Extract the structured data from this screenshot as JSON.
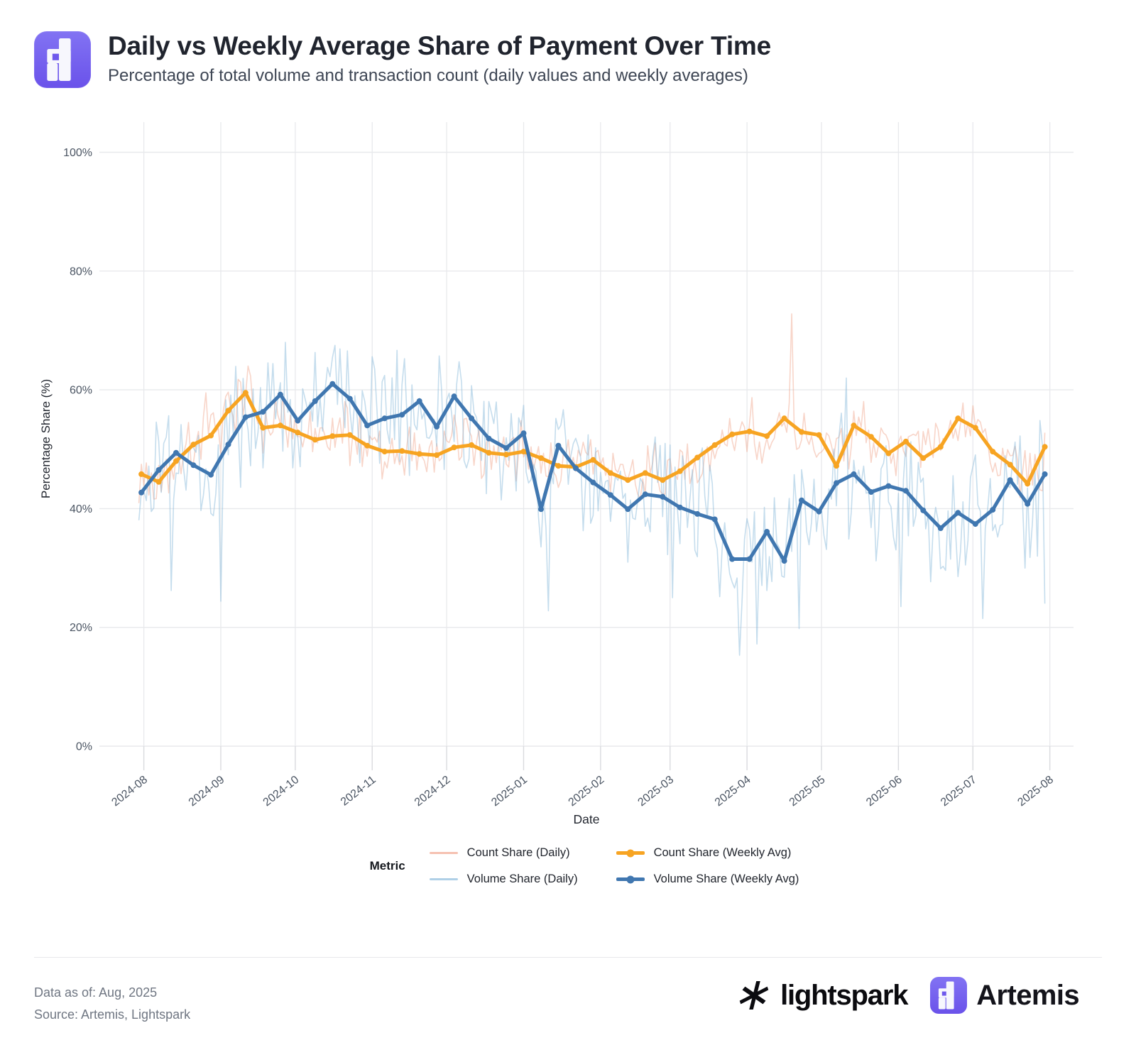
{
  "header": {
    "title": "Daily vs Weekly Average Share of Payment Over Time",
    "subtitle": "Percentage of total volume and transaction count (daily values and weekly averages)"
  },
  "brand": {
    "artemis_purple": "#6E59EC",
    "lightspark_black": "#0B0B0F"
  },
  "legend": {
    "title": "Metric",
    "items": [
      {
        "series_id": "count_daily",
        "label": "Count Share (Daily)"
      },
      {
        "series_id": "count_weekly",
        "label": "Count Share (Weekly Avg)"
      },
      {
        "series_id": "volume_daily",
        "label": "Volume Share (Daily)"
      },
      {
        "series_id": "volume_weekly",
        "label": "Volume Share (Weekly Avg)"
      }
    ]
  },
  "footer": {
    "data_as_of": "Data as of: Aug, 2025",
    "source": "Source: Artemis, Lightspark",
    "lightspark_wordmark": "lightspark",
    "artemis_wordmark": "Artemis"
  },
  "chart_data": {
    "type": "line",
    "title": "Daily vs Weekly Average Share of Payment Over Time",
    "xlabel": "Date",
    "ylabel": "Percentage Share (%)",
    "ylim": [
      0,
      100
    ],
    "x_range": [
      "2024-07-30",
      "2025-08-01"
    ],
    "layout_hints": {
      "grid": "on",
      "grid_color": "#E8E9EC",
      "tick_color": "#D9DADE",
      "axis_text_color": "#4B5563",
      "axis_title_color": "#22262F",
      "legend_position": "bottom",
      "background": "#FFFFFF"
    },
    "y_axis": {
      "title": "Percentage Share (%)",
      "ticks": [
        {
          "v": 0,
          "label": "0%"
        },
        {
          "v": 20,
          "label": "20%"
        },
        {
          "v": 40,
          "label": "40%"
        },
        {
          "v": 60,
          "label": "60%"
        },
        {
          "v": 80,
          "label": "80%"
        },
        {
          "v": 100,
          "label": "100%"
        }
      ]
    },
    "x_axis": {
      "title": "Date",
      "ticks": [
        {
          "day": 0,
          "label": "2024-08"
        },
        {
          "day": 31,
          "label": "2024-09"
        },
        {
          "day": 61,
          "label": "2024-10"
        },
        {
          "day": 92,
          "label": "2024-11"
        },
        {
          "day": 122,
          "label": "2024-12"
        },
        {
          "day": 153,
          "label": "2025-01"
        },
        {
          "day": 184,
          "label": "2025-02"
        },
        {
          "day": 212,
          "label": "2025-03"
        },
        {
          "day": 243,
          "label": "2025-04"
        },
        {
          "day": 273,
          "label": "2025-05"
        },
        {
          "day": 304,
          "label": "2025-06"
        },
        {
          "day": 334,
          "label": "2025-07"
        },
        {
          "day": 365,
          "label": "2025-08"
        }
      ]
    },
    "weekly_start_day_offset": -1,
    "weekly_interval_days": 7,
    "series": [
      {
        "id": "count_daily",
        "name": "Count Share (Daily)",
        "kind": "daily",
        "color": "#ED9579",
        "opacity": 0.4,
        "width": 1.6
      },
      {
        "id": "volume_daily",
        "name": "Volume Share (Daily)",
        "kind": "daily",
        "color": "#86B8DA",
        "opacity": 0.48,
        "width": 1.6
      },
      {
        "id": "count_weekly",
        "name": "Count Share (Weekly Avg)",
        "kind": "weekly",
        "color": "#F7A422",
        "opacity": 1,
        "width": 5,
        "values": [
          45.8,
          44.5,
          48.0,
          50.8,
          52.3,
          56.5,
          59.5,
          53.6,
          54.0,
          52.8,
          51.6,
          52.2,
          52.4,
          50.6,
          49.6,
          49.7,
          49.2,
          49.0,
          50.3,
          50.7,
          49.4,
          49.1,
          49.6,
          48.5,
          47.2,
          47.0,
          48.2,
          46.0,
          44.8,
          46.0,
          44.8,
          46.3,
          48.6,
          50.7,
          52.5,
          53.0,
          52.2,
          55.2,
          52.9,
          52.4,
          47.2,
          54.0,
          52.1,
          49.3,
          51.3,
          48.5,
          50.4,
          55.2,
          53.6,
          49.6,
          47.4,
          44.2,
          50.4
        ]
      },
      {
        "id": "volume_weekly",
        "name": "Volume Share (Weekly Avg)",
        "kind": "weekly",
        "color": "#4077B0",
        "opacity": 1,
        "width": 5,
        "values": [
          42.7,
          46.5,
          49.4,
          47.3,
          45.7,
          50.8,
          55.4,
          56.3,
          59.2,
          54.8,
          58.1,
          61.0,
          58.5,
          54.0,
          55.2,
          55.8,
          58.1,
          53.8,
          58.9,
          55.2,
          51.8,
          50.2,
          52.7,
          39.9,
          50.6,
          46.8,
          44.4,
          42.3,
          39.9,
          42.4,
          42.0,
          40.2,
          39.1,
          38.2,
          31.5,
          31.5,
          36.1,
          31.2,
          41.4,
          39.5,
          44.3,
          45.8,
          42.8,
          43.8,
          43.0,
          39.7,
          36.7,
          39.3,
          37.4,
          39.8,
          44.8,
          40.8,
          45.8
        ]
      }
    ],
    "daily_model": {
      "note": "Daily series reconstructed as weekly average + bounded noise; overrides are values read from the chart (day offset from 2024-08-01).",
      "seed": 3,
      "start_day": -2,
      "end_day": 363,
      "count": {
        "amplitude": 4.2,
        "overrides": {
          "4": 41.6,
          "25": 59.5,
          "42": 64.0,
          "261": 72.8,
          "362": 43.0
        }
      },
      "volume": {
        "amplitude": 8.5,
        "overrides": {
          "11": 26.2,
          "31": 24.4,
          "57": 68.0,
          "69": 66.3,
          "77": 67.5,
          "93": 63.5,
          "163": 22.8,
          "213": 25.0,
          "240": 15.3,
          "247": 17.2,
          "264": 19.8,
          "283": 62.0,
          "305": 23.5,
          "338": 21.5,
          "360": 32.0,
          "363": 24.0
        }
      }
    }
  }
}
